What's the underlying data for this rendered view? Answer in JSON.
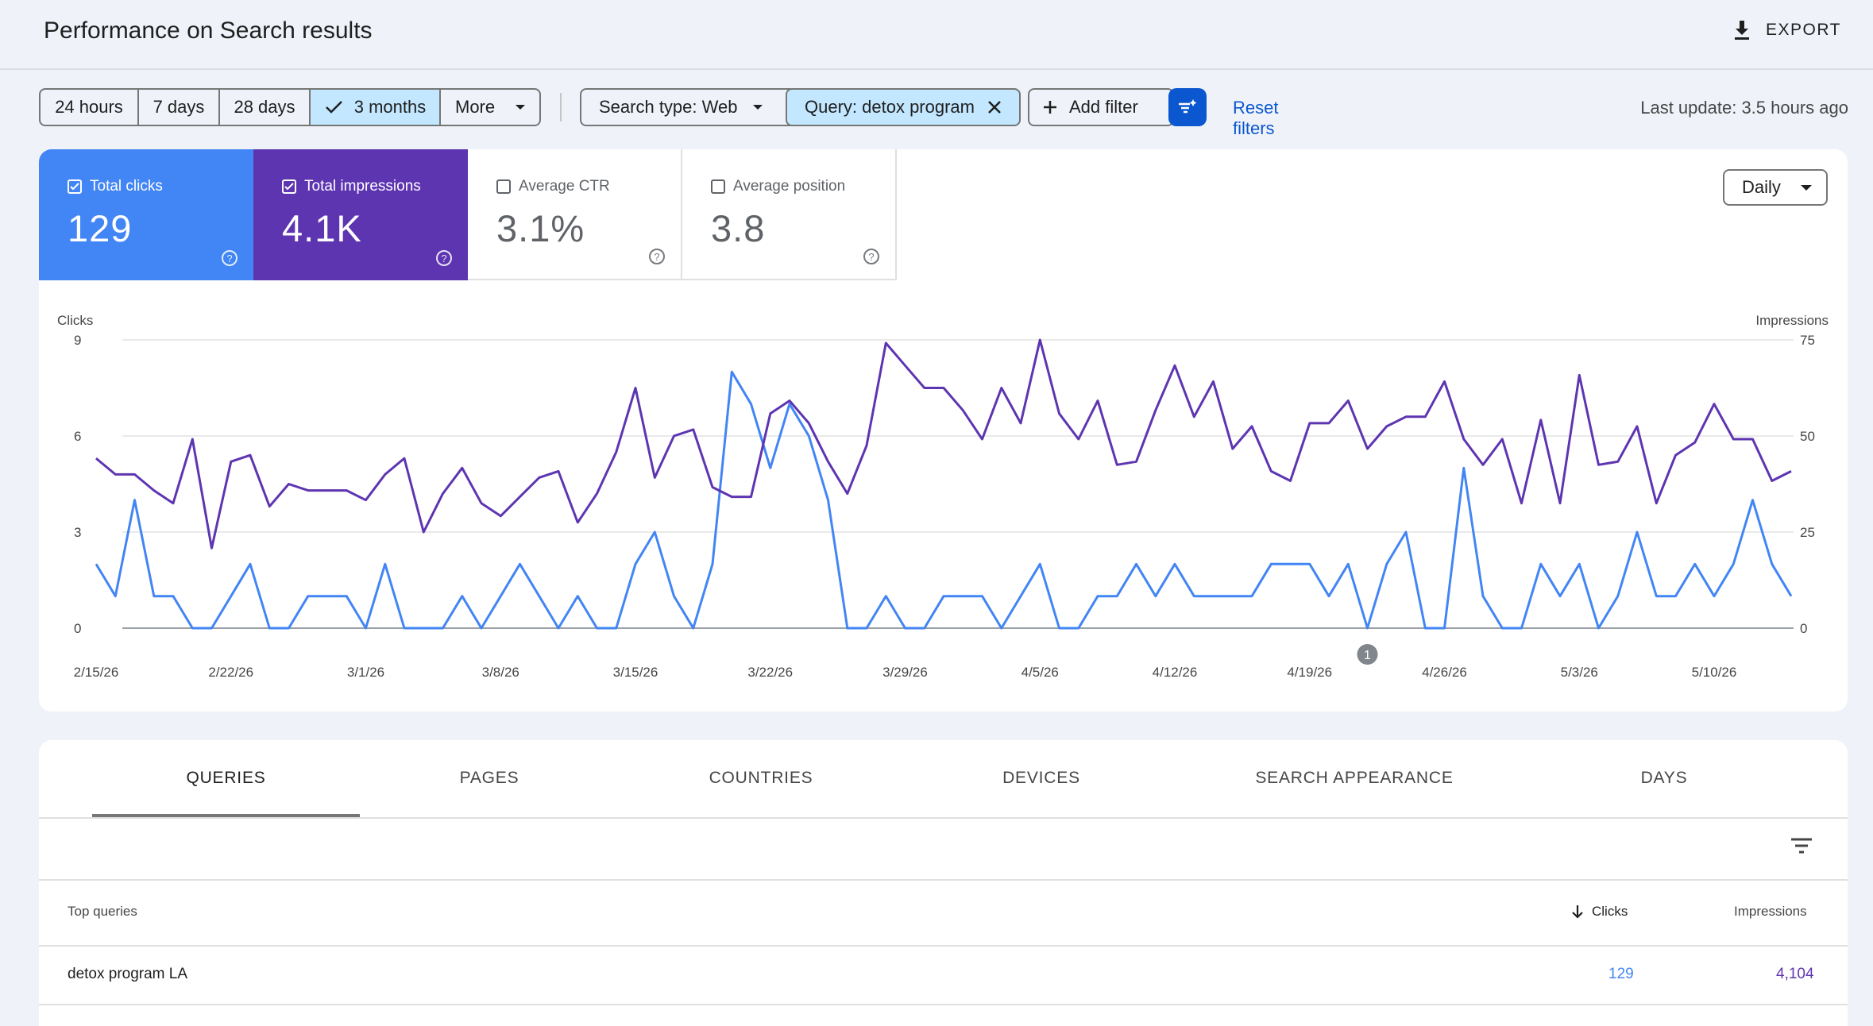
{
  "header": {
    "title": "Performance on Search results",
    "export_label": "EXPORT"
  },
  "toolbar": {
    "date_ranges": [
      "24 hours",
      "7 days",
      "28 days",
      "3 months",
      "More"
    ],
    "selected_range": "3 months",
    "search_type": "Search type: Web",
    "query_filter": "Query: detox program",
    "add_filter": "Add filter",
    "reset": "Reset filters",
    "last_update": "Last update: 3.5 hours ago"
  },
  "metrics": [
    {
      "label": "Total clicks",
      "value": "129",
      "checked": true,
      "color": "#4285f4"
    },
    {
      "label": "Total impressions",
      "value": "4.1K",
      "checked": true,
      "color": "#5e35b1"
    },
    {
      "label": "Average CTR",
      "value": "3.1%",
      "checked": false
    },
    {
      "label": "Average position",
      "value": "3.8",
      "checked": false
    }
  ],
  "granularity": "Daily",
  "chart_data": {
    "type": "line",
    "y_left_label": "Clicks",
    "y_right_label": "Impressions",
    "y_left_ticks": [
      "0",
      "3",
      "6",
      "9"
    ],
    "y_right_ticks": [
      "0",
      "25",
      "50",
      "75"
    ],
    "ylim_left": [
      0,
      9
    ],
    "ylim_right": [
      0,
      75
    ],
    "x_tick_labels": [
      "2/15/26",
      "2/22/26",
      "3/1/26",
      "3/8/26",
      "3/15/26",
      "3/22/26",
      "3/29/26",
      "4/5/26",
      "4/12/26",
      "4/19/26",
      "4/26/26",
      "5/3/26",
      "5/10/26"
    ],
    "annotation": {
      "label": "1",
      "date": "4/22/26"
    },
    "grid": true,
    "series": [
      {
        "name": "Clicks",
        "color": "#4285f4",
        "axis": "left",
        "values": [
          2,
          1,
          4,
          1,
          1,
          0,
          0,
          1,
          2,
          0,
          0,
          1,
          1,
          1,
          0,
          2,
          0,
          0,
          0,
          1,
          0,
          1,
          2,
          1,
          0,
          1,
          0,
          0,
          2,
          3,
          1,
          0,
          2,
          8,
          7,
          5,
          7,
          6,
          4,
          0,
          0,
          1,
          0,
          0,
          1,
          1,
          1,
          0,
          1,
          2,
          0,
          0,
          1,
          1,
          2,
          1,
          2,
          1,
          1,
          1,
          1,
          2,
          2,
          2,
          1,
          2,
          0,
          2,
          3,
          0,
          0,
          5,
          1,
          0,
          0,
          2,
          1,
          2,
          0,
          1,
          3,
          1,
          1,
          2,
          1,
          2,
          4,
          2,
          1
        ]
      },
      {
        "name": "Impressions",
        "color": "#5e35b1",
        "axis": "left",
        "values": [
          5.3,
          4.8,
          4.8,
          4.3,
          3.9,
          5.9,
          2.5,
          5.2,
          5.4,
          3.8,
          4.5,
          4.3,
          4.3,
          4.3,
          4.0,
          4.8,
          5.3,
          3.0,
          4.2,
          5.0,
          3.9,
          3.5,
          4.1,
          4.7,
          4.9,
          3.3,
          4.2,
          5.5,
          7.5,
          4.7,
          6.0,
          6.2,
          4.4,
          4.1,
          4.1,
          6.7,
          7.1,
          6.4,
          5.2,
          4.2,
          5.7,
          8.9,
          8.2,
          7.5,
          7.5,
          6.8,
          5.9,
          7.5,
          6.4,
          9.0,
          6.7,
          5.9,
          7.1,
          5.1,
          5.2,
          6.8,
          8.2,
          6.6,
          7.7,
          5.6,
          6.3,
          4.9,
          4.6,
          6.4,
          6.4,
          7.1,
          5.6,
          6.3,
          6.6,
          6.6,
          7.7,
          5.9,
          5.1,
          5.9,
          3.9,
          6.5,
          3.9,
          7.9,
          5.1,
          5.2,
          6.3,
          3.9,
          5.4,
          5.8,
          7.0,
          5.9,
          5.9,
          4.6,
          4.9
        ]
      }
    ]
  },
  "tabs": [
    "QUERIES",
    "PAGES",
    "COUNTRIES",
    "DEVICES",
    "SEARCH APPEARANCE",
    "DAYS"
  ],
  "active_tab": "QUERIES",
  "table": {
    "headers": [
      "Top queries",
      "Clicks",
      "Impressions"
    ],
    "rows": [
      {
        "query": "detox program LA",
        "clicks": "129",
        "impressions": "4,104"
      }
    ]
  }
}
